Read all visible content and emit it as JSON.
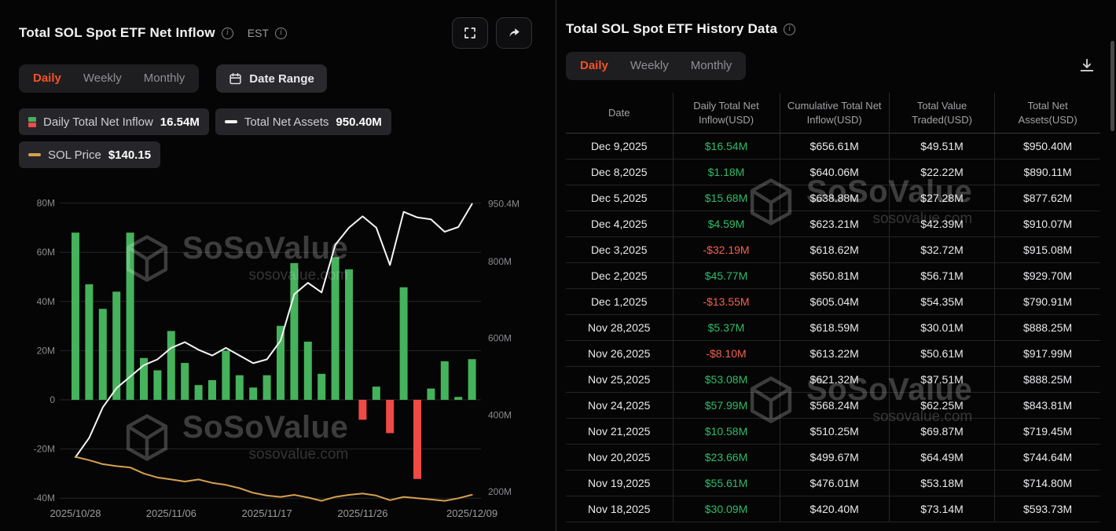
{
  "colors": {
    "accent": "#f65126",
    "positive": "#2ebd69",
    "negative": "#f4604f",
    "bar_positive": "#45b25c",
    "bar_negative": "#ef4a45",
    "assets_line": "#f5f5f5",
    "price_line": "#d6a04e"
  },
  "left_panel": {
    "title": "Total SOL Spot ETF Net Inflow",
    "est_label": "EST",
    "tabs": [
      {
        "label": "Daily",
        "active": true
      },
      {
        "label": "Weekly",
        "active": false
      },
      {
        "label": "Monthly",
        "active": false
      }
    ],
    "date_range_label": "Date Range",
    "legend": [
      {
        "label": "Daily Total Net Inflow",
        "value": "16.54M"
      },
      {
        "label": "Total Net Assets",
        "value": "950.40M"
      },
      {
        "label": "SOL Price",
        "value": "$140.15"
      }
    ]
  },
  "chart_data": {
    "type": "bar",
    "title": "Total SOL Spot ETF Net Inflow",
    "x": [
      "2025/10/28",
      "2025/10/29",
      "2025/10/30",
      "2025/10/31",
      "2025/11/03",
      "2025/11/04",
      "2025/11/05",
      "2025/11/06",
      "2025/11/07",
      "2025/11/10",
      "2025/11/11",
      "2025/11/12",
      "2025/11/13",
      "2025/11/14",
      "2025/11/17",
      "2025/11/18",
      "2025/11/19",
      "2025/11/20",
      "2025/11/21",
      "2025/11/24",
      "2025/11/25",
      "2025/11/26",
      "2025/11/28",
      "2025/12/01",
      "2025/12/02",
      "2025/12/03",
      "2025/12/04",
      "2025/12/05",
      "2025/12/08",
      "2025/12/09"
    ],
    "series": [
      {
        "name": "Daily Total Net Inflow (M USD)",
        "type": "bar",
        "values": [
          68,
          47,
          37,
          44,
          68,
          17,
          12,
          28,
          15,
          6,
          8,
          20,
          10,
          5,
          10,
          30.09,
          55.61,
          23.66,
          10.58,
          57.99,
          53.08,
          -8.1,
          5.37,
          -13.55,
          45.77,
          -32.19,
          4.59,
          15.68,
          1.18,
          16.54
        ]
      },
      {
        "name": "Total Net Assets (M USD)",
        "type": "line",
        "axis": "right",
        "values": [
          290,
          340,
          420,
          470,
          500,
          530,
          545,
          575,
          590,
          570,
          555,
          575,
          555,
          535,
          545,
          593.73,
          714.8,
          744.64,
          719.45,
          843.81,
          888.25,
          917.99,
          888.25,
          790.91,
          929.7,
          915.08,
          910.07,
          877.62,
          890.11,
          950.4
        ]
      },
      {
        "name": "SOL Price (USD)",
        "type": "line",
        "values": [
          197,
          192,
          186,
          183,
          181,
          172,
          166,
          163,
          160,
          163,
          158,
          155,
          150,
          143,
          139,
          137,
          140,
          136,
          131,
          137,
          140,
          142,
          139,
          132,
          137,
          135,
          133,
          131,
          135,
          140.15
        ]
      }
    ],
    "left_axis": [
      {
        "label": "80M",
        "v": 80
      },
      {
        "label": "60M",
        "v": 60
      },
      {
        "label": "40M",
        "v": 40
      },
      {
        "label": "20M",
        "v": 20
      },
      {
        "label": "0",
        "v": 0
      },
      {
        "label": "-20M",
        "v": -20
      },
      {
        "label": "-40M",
        "v": -40
      }
    ],
    "right_axis": [
      {
        "label": "950.4M",
        "v": 950.4
      },
      {
        "label": "800M",
        "v": 800
      },
      {
        "label": "600M",
        "v": 600
      },
      {
        "label": "400M",
        "v": 400
      },
      {
        "label": "200M",
        "v": 200
      }
    ],
    "x_ticks": [
      {
        "i": 0,
        "label": "2025/10/28"
      },
      {
        "i": 7,
        "label": "2025/11/06"
      },
      {
        "i": 14,
        "label": "2025/11/17"
      },
      {
        "i": 21,
        "label": "2025/11/26"
      },
      {
        "i": 29,
        "label": "2025/12/09"
      }
    ],
    "left_ylim": [
      -40,
      80
    ],
    "right_ylim": [
      200,
      982
    ],
    "grid": true,
    "legend_position": "top"
  },
  "right_panel": {
    "title": "Total SOL Spot ETF History Data",
    "tabs": [
      "Daily",
      "Weekly",
      "Monthly"
    ],
    "table": {
      "columns": [
        "Date",
        "Daily Total Net Inflow(USD)",
        "Cumulative Total Net Inflow(USD)",
        "Total Value Traded(USD)",
        "Total Net Assets(USD)"
      ],
      "rows": [
        {
          "date": "Dec 9,2025",
          "inflow": "$16.54M",
          "cumulative": "$656.61M",
          "traded": "$49.51M",
          "assets": "$950.40M"
        },
        {
          "date": "Dec 8,2025",
          "inflow": "$1.18M",
          "cumulative": "$640.06M",
          "traded": "$22.22M",
          "assets": "$890.11M"
        },
        {
          "date": "Dec 5,2025",
          "inflow": "$15.68M",
          "cumulative": "$638.88M",
          "traded": "$27.28M",
          "assets": "$877.62M"
        },
        {
          "date": "Dec 4,2025",
          "inflow": "$4.59M",
          "cumulative": "$623.21M",
          "traded": "$42.39M",
          "assets": "$910.07M"
        },
        {
          "date": "Dec 3,2025",
          "inflow": "-$32.19M",
          "cumulative": "$618.62M",
          "traded": "$32.72M",
          "assets": "$915.08M"
        },
        {
          "date": "Dec 2,2025",
          "inflow": "$45.77M",
          "cumulative": "$650.81M",
          "traded": "$56.71M",
          "assets": "$929.70M"
        },
        {
          "date": "Dec 1,2025",
          "inflow": "-$13.55M",
          "cumulative": "$605.04M",
          "traded": "$54.35M",
          "assets": "$790.91M"
        },
        {
          "date": "Nov 28,2025",
          "inflow": "$5.37M",
          "cumulative": "$618.59M",
          "traded": "$30.01M",
          "assets": "$888.25M"
        },
        {
          "date": "Nov 26,2025",
          "inflow": "-$8.10M",
          "cumulative": "$613.22M",
          "traded": "$50.61M",
          "assets": "$917.99M"
        },
        {
          "date": "Nov 25,2025",
          "inflow": "$53.08M",
          "cumulative": "$621.32M",
          "traded": "$37.51M",
          "assets": "$888.25M"
        },
        {
          "date": "Nov 24,2025",
          "inflow": "$57.99M",
          "cumulative": "$568.24M",
          "traded": "$62.25M",
          "assets": "$843.81M"
        },
        {
          "date": "Nov 21,2025",
          "inflow": "$10.58M",
          "cumulative": "$510.25M",
          "traded": "$69.87M",
          "assets": "$719.45M"
        },
        {
          "date": "Nov 20,2025",
          "inflow": "$23.66M",
          "cumulative": "$499.67M",
          "traded": "$64.49M",
          "assets": "$744.64M"
        },
        {
          "date": "Nov 19,2025",
          "inflow": "$55.61M",
          "cumulative": "$476.01M",
          "traded": "$53.18M",
          "assets": "$714.80M"
        },
        {
          "date": "Nov 18,2025",
          "inflow": "$30.09M",
          "cumulative": "$420.40M",
          "traded": "$73.14M",
          "assets": "$593.73M"
        }
      ]
    }
  },
  "watermark": {
    "brand": "SoSoValue",
    "domain": "sosovalue.com"
  }
}
